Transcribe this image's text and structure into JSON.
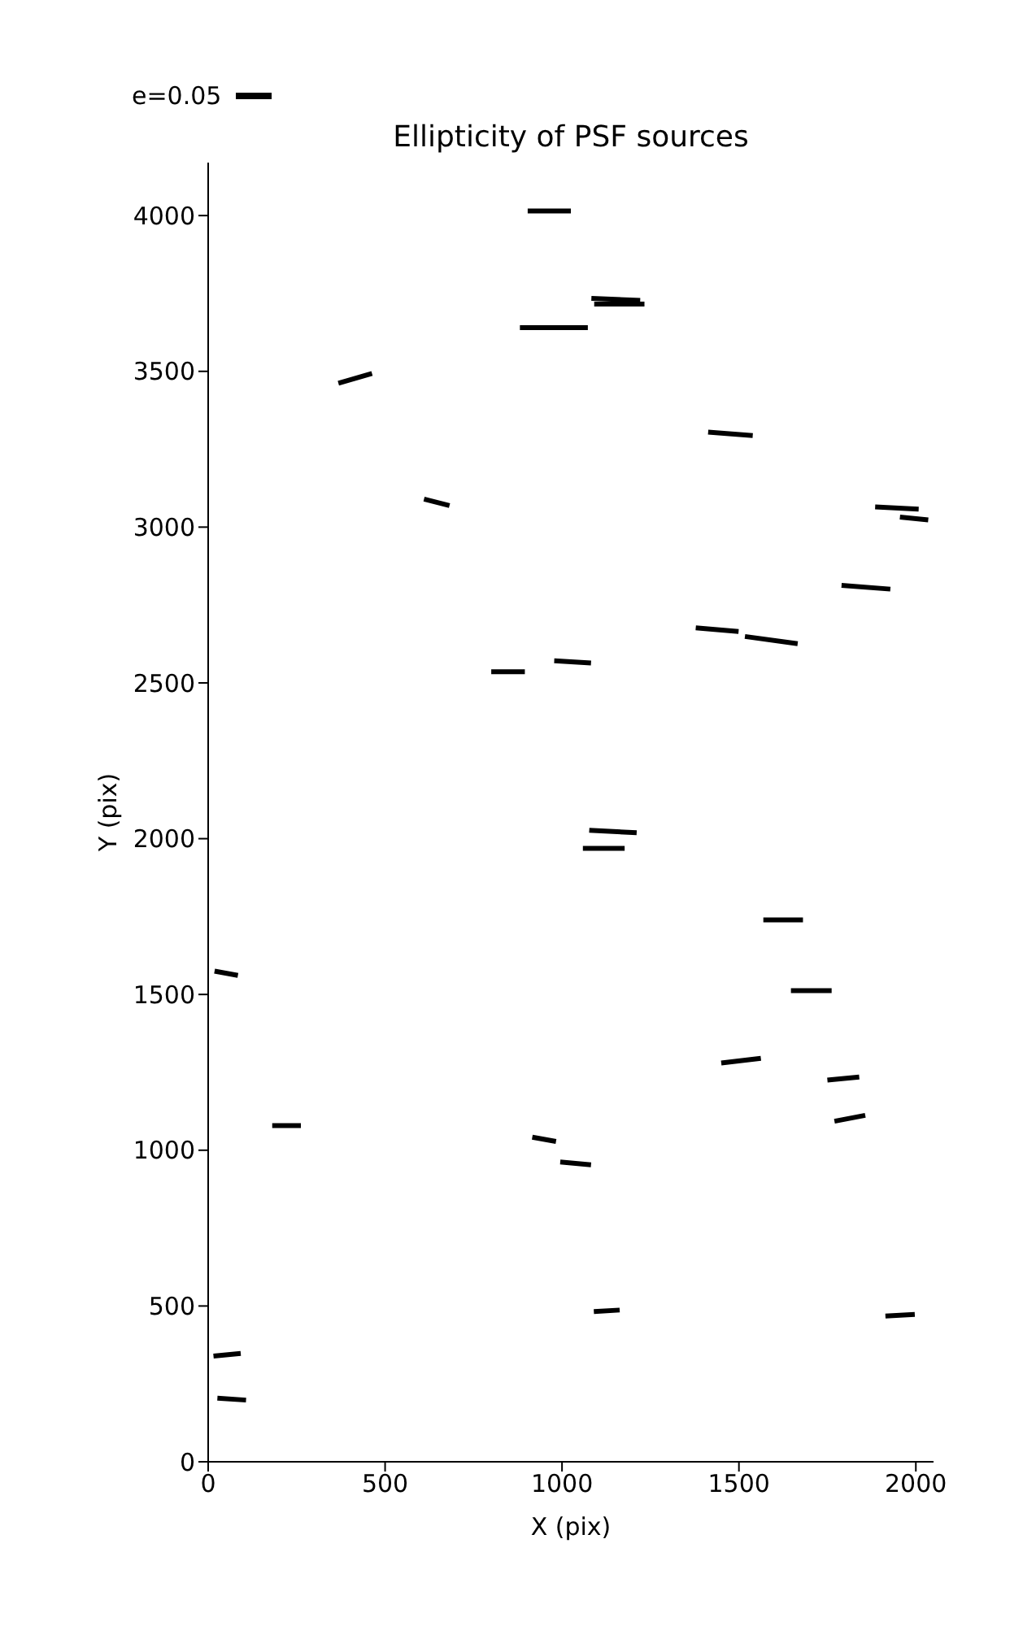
{
  "chart_data": {
    "type": "line",
    "title": "Ellipticity of PSF sources",
    "xlabel": "X (pix)",
    "ylabel": "Y (pix)",
    "annotations": [
      "e=0.05"
    ],
    "xlim": [
      0,
      2050
    ],
    "xticks": [
      0,
      500,
      1000,
      1500,
      2000
    ],
    "ylim": [
      0,
      4170
    ],
    "yticks": [
      0,
      500,
      1000,
      1500,
      2000,
      2500,
      3000,
      3500,
      4000
    ],
    "series": [
      {
        "color": "#000000",
        "x": [
          903,
          1025
        ],
        "values": [
          4015,
          4015
        ]
      },
      {
        "color": "#000000",
        "x": [
          1083,
          1221
        ],
        "values": [
          3734,
          3728
        ]
      },
      {
        "color": "#000000",
        "x": [
          1091,
          1233
        ],
        "values": [
          3716,
          3716
        ]
      },
      {
        "color": "#000000",
        "x": [
          881,
          1073
        ],
        "values": [
          3640,
          3640
        ]
      },
      {
        "color": "#000000",
        "x": [
          368,
          463
        ],
        "values": [
          3462,
          3493
        ]
      },
      {
        "color": "#000000",
        "x": [
          1413,
          1539
        ],
        "values": [
          3305,
          3294
        ]
      },
      {
        "color": "#000000",
        "x": [
          610,
          682
        ],
        "values": [
          3090,
          3069
        ]
      },
      {
        "color": "#000000",
        "x": [
          1885,
          2008
        ],
        "values": [
          3065,
          3058
        ]
      },
      {
        "color": "#000000",
        "x": [
          1955,
          2035
        ],
        "values": [
          3032,
          3023
        ]
      },
      {
        "color": "#000000",
        "x": [
          1790,
          1928
        ],
        "values": [
          2813,
          2801
        ]
      },
      {
        "color": "#000000",
        "x": [
          1378,
          1499
        ],
        "values": [
          2677,
          2665
        ]
      },
      {
        "color": "#000000",
        "x": [
          1517,
          1666
        ],
        "values": [
          2649,
          2626
        ]
      },
      {
        "color": "#000000",
        "x": [
          800,
          895
        ],
        "values": [
          2536,
          2536
        ]
      },
      {
        "color": "#000000",
        "x": [
          978,
          1082
        ],
        "values": [
          2571,
          2564
        ]
      },
      {
        "color": "#000000",
        "x": [
          1077,
          1211
        ],
        "values": [
          2027,
          2019
        ]
      },
      {
        "color": "#000000",
        "x": [
          1059,
          1177
        ],
        "values": [
          1969,
          1969
        ]
      },
      {
        "color": "#000000",
        "x": [
          1569,
          1681
        ],
        "values": [
          1739,
          1739
        ]
      },
      {
        "color": "#000000",
        "x": [
          18,
          84
        ],
        "values": [
          1575,
          1561
        ]
      },
      {
        "color": "#000000",
        "x": [
          1647,
          1762
        ],
        "values": [
          1512,
          1512
        ]
      },
      {
        "color": "#000000",
        "x": [
          1450,
          1562
        ],
        "values": [
          1280,
          1295
        ]
      },
      {
        "color": "#000000",
        "x": [
          1750,
          1840
        ],
        "values": [
          1225,
          1235
        ]
      },
      {
        "color": "#000000",
        "x": [
          1770,
          1857
        ],
        "values": [
          1093,
          1112
        ]
      },
      {
        "color": "#000000",
        "x": [
          181,
          262
        ],
        "values": [
          1079,
          1079
        ]
      },
      {
        "color": "#000000",
        "x": [
          916,
          983
        ],
        "values": [
          1042,
          1028
        ]
      },
      {
        "color": "#000000",
        "x": [
          995,
          1082
        ],
        "values": [
          962,
          953
        ]
      },
      {
        "color": "#000000",
        "x": [
          1090,
          1163
        ],
        "values": [
          482,
          487
        ]
      },
      {
        "color": "#000000",
        "x": [
          1914,
          1997
        ],
        "values": [
          468,
          473
        ]
      },
      {
        "color": "#000000",
        "x": [
          15,
          92
        ],
        "values": [
          339,
          348
        ]
      },
      {
        "color": "#000000",
        "x": [
          26,
          107
        ],
        "values": [
          204,
          198
        ]
      }
    ]
  }
}
